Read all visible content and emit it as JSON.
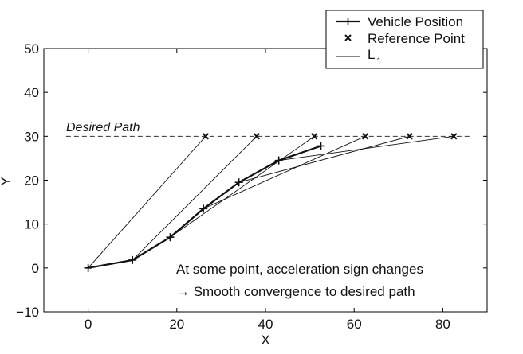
{
  "chart_data": {
    "type": "line",
    "xlabel": "X",
    "ylabel": "Y",
    "xlim": [
      -10,
      90
    ],
    "ylim": [
      -10,
      50
    ],
    "xticks": [
      0,
      20,
      40,
      60,
      80
    ],
    "yticks": [
      -10,
      0,
      10,
      20,
      30,
      40,
      50
    ],
    "grid": false,
    "legend_position": "top-right",
    "legend": {
      "vehicle": "Vehicle Position",
      "reference": "Reference Point",
      "l1_main": "L",
      "l1_sub": "1"
    },
    "desired_path": {
      "label": "Desired Path",
      "y": 30
    },
    "annotations": {
      "line1": "At some point, acceleration sign changes",
      "line2": "→ Smooth convergence to desired path"
    },
    "series": [
      {
        "name": "Vehicle Position",
        "x": [
          0,
          10,
          18.5,
          26,
          34,
          43,
          52.5
        ],
        "y": [
          0,
          1.8,
          7,
          13.5,
          19.5,
          24.5,
          27.8
        ]
      },
      {
        "name": "Reference Point",
        "x": [
          26.5,
          38,
          51,
          62.5,
          72.5,
          82.5
        ],
        "y": [
          30,
          30,
          30,
          30,
          30,
          30
        ]
      }
    ],
    "l1_segments": [
      {
        "from": [
          0,
          0
        ],
        "to": [
          26.5,
          30
        ]
      },
      {
        "from": [
          10,
          1.8
        ],
        "to": [
          38,
          30
        ]
      },
      {
        "from": [
          18.5,
          7
        ],
        "to": [
          51,
          30
        ]
      },
      {
        "from": [
          26,
          13.5
        ],
        "to": [
          62.5,
          30
        ]
      },
      {
        "from": [
          34,
          19.5
        ],
        "to": [
          72.5,
          30
        ]
      },
      {
        "from": [
          43,
          24.5
        ],
        "to": [
          82.5,
          30
        ]
      }
    ],
    "colors": {
      "line": "#111111",
      "axis": "#000000"
    }
  }
}
